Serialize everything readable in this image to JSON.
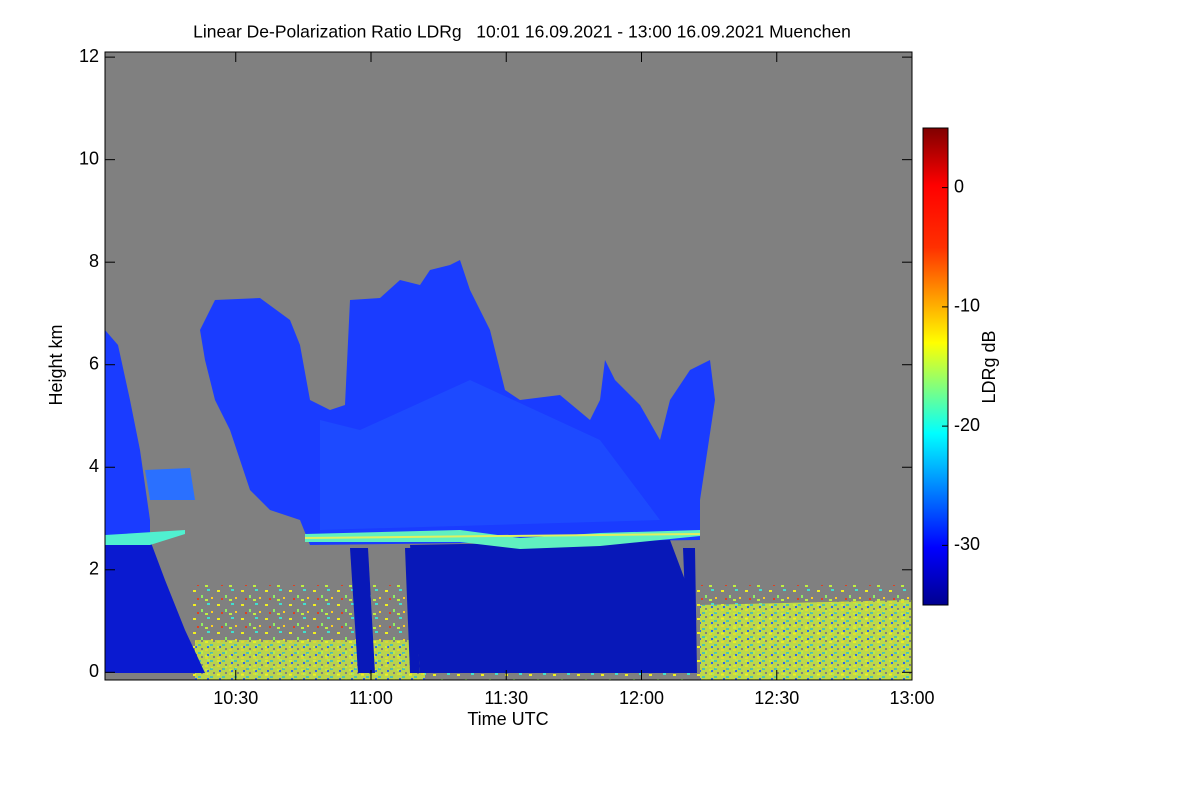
{
  "chart_data": {
    "type": "heatmap",
    "title": "Linear De-Polarization Ratio LDRg   10:01 16.09.2021 - 13:00 16.09.2021 Muenchen",
    "xlabel": "Time UTC",
    "ylabel": "Height km",
    "xlim": [
      601,
      780
    ],
    "xticks": [
      {
        "value": 630,
        "label": "10:30"
      },
      {
        "value": 660,
        "label": "11:00"
      },
      {
        "value": 690,
        "label": "11:30"
      },
      {
        "value": 720,
        "label": "12:00"
      },
      {
        "value": 750,
        "label": "12:30"
      },
      {
        "value": 780,
        "label": "13:00"
      }
    ],
    "ylim": [
      -0.15,
      12.1
    ],
    "yticks": [
      0,
      2,
      4,
      6,
      8,
      10,
      12
    ],
    "colorbar": {
      "label": "LDRg dB",
      "lim": [
        -35,
        5
      ],
      "ticks": [
        0,
        -10,
        -20,
        -30
      ]
    }
  }
}
